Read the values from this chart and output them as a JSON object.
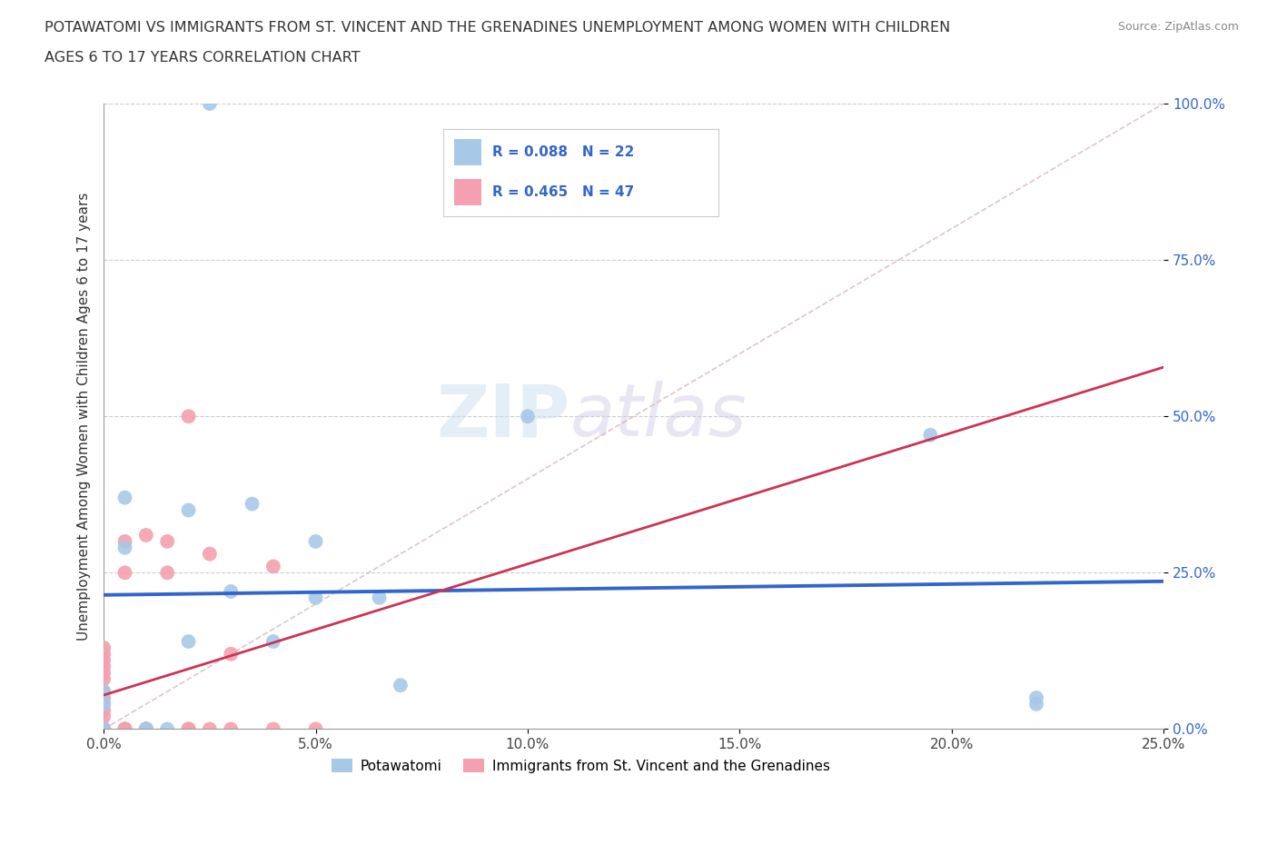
{
  "title_line1": "POTAWATOMI VS IMMIGRANTS FROM ST. VINCENT AND THE GRENADINES UNEMPLOYMENT AMONG WOMEN WITH CHILDREN",
  "title_line2": "AGES 6 TO 17 YEARS CORRELATION CHART",
  "source": "Source: ZipAtlas.com",
  "ylabel": "Unemployment Among Women with Children Ages 6 to 17 years",
  "xlim": [
    0.0,
    0.25
  ],
  "ylim": [
    0.0,
    1.0
  ],
  "xticks": [
    0.0,
    0.05,
    0.1,
    0.15,
    0.2,
    0.25
  ],
  "yticks": [
    0.0,
    0.25,
    0.5,
    0.75,
    1.0
  ],
  "potawatomi_x": [
    0.025,
    0.0,
    0.0,
    0.0,
    0.005,
    0.005,
    0.01,
    0.01,
    0.015,
    0.02,
    0.02,
    0.03,
    0.035,
    0.04,
    0.05,
    0.05,
    0.065,
    0.07,
    0.1,
    0.195,
    0.22,
    0.22
  ],
  "potawatomi_y": [
    1.0,
    0.0,
    0.04,
    0.06,
    0.37,
    0.29,
    0.0,
    0.0,
    0.0,
    0.35,
    0.14,
    0.22,
    0.36,
    0.14,
    0.3,
    0.21,
    0.21,
    0.07,
    0.5,
    0.47,
    0.05,
    0.04
  ],
  "svg_x": [
    0.0,
    0.0,
    0.0,
    0.0,
    0.0,
    0.0,
    0.0,
    0.0,
    0.0,
    0.0,
    0.0,
    0.0,
    0.0,
    0.0,
    0.0,
    0.0,
    0.0,
    0.0,
    0.0,
    0.0,
    0.0,
    0.0,
    0.0,
    0.0,
    0.0,
    0.005,
    0.005,
    0.005,
    0.005,
    0.005,
    0.01,
    0.01,
    0.01,
    0.01,
    0.01,
    0.015,
    0.015,
    0.02,
    0.02,
    0.02,
    0.025,
    0.025,
    0.03,
    0.03,
    0.04,
    0.04,
    0.05
  ],
  "svg_y": [
    0.0,
    0.0,
    0.0,
    0.0,
    0.0,
    0.0,
    0.0,
    0.0,
    0.0,
    0.0,
    0.0,
    0.0,
    0.0,
    0.0,
    0.02,
    0.03,
    0.04,
    0.05,
    0.06,
    0.08,
    0.09,
    0.1,
    0.11,
    0.12,
    0.13,
    0.0,
    0.0,
    0.0,
    0.25,
    0.3,
    0.0,
    0.0,
    0.0,
    0.0,
    0.31,
    0.25,
    0.3,
    0.0,
    0.0,
    0.5,
    0.0,
    0.28,
    0.0,
    0.12,
    0.0,
    0.26,
    0.0
  ],
  "potawatomi_color": "#a8c8e8",
  "svg_color": "#f4a0b0",
  "potawatomi_R": 0.088,
  "potawatomi_N": 22,
  "svg_R": 0.465,
  "svg_N": 47,
  "regression_color_potawatomi": "#3366cc",
  "regression_color_svg": "#cc3355",
  "dashed_line_color": "#d4b8c0",
  "watermark_zip": "ZIP",
  "watermark_atlas": "atlas",
  "background_color": "#ffffff"
}
